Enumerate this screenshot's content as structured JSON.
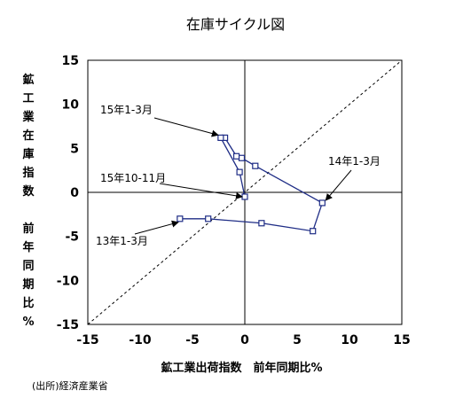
{
  "chart_data": {
    "type": "line",
    "title": "在庫サイクル図",
    "xlabel": "鉱工業出荷指数　前年同期比%",
    "ylabel_chars": [
      "鉱",
      "工",
      "業",
      "在",
      "庫",
      "指",
      "数",
      "",
      "前",
      "年",
      "同",
      "期",
      "比",
      "%"
    ],
    "xlim": [
      -15,
      15
    ],
    "ylim": [
      -15,
      15
    ],
    "x_ticks": [
      "-15",
      "-10",
      "-5",
      "0",
      "5",
      "10",
      "15"
    ],
    "y_ticks": [
      "15",
      "10",
      "5",
      "0",
      "-5",
      "-10",
      "-15"
    ],
    "reference_line": "y = x (dashed)",
    "grid": false,
    "series": [
      {
        "color": "#1f2d86",
        "marker": "square",
        "points": [
          {
            "x": -6.2,
            "y": -3.0
          },
          {
            "x": -3.5,
            "y": -3.0
          },
          {
            "x": 1.6,
            "y": -3.5
          },
          {
            "x": 6.5,
            "y": -4.4
          },
          {
            "x": 7.4,
            "y": -1.2
          },
          {
            "x": 1.0,
            "y": 3.0
          },
          {
            "x": -0.3,
            "y": 3.9
          },
          {
            "x": -0.8,
            "y": 4.1
          },
          {
            "x": -1.9,
            "y": 6.2
          },
          {
            "x": -2.3,
            "y": 6.2
          },
          {
            "x": -0.5,
            "y": 2.3
          },
          {
            "x": 0.0,
            "y": -0.5
          }
        ]
      }
    ],
    "annotations": [
      {
        "text": "13年1-3月",
        "target_index": 0
      },
      {
        "text": "14年1-3月",
        "target_index": 4
      },
      {
        "text": "15年1-3月",
        "target_index": 9
      },
      {
        "text": "15年10-11月",
        "target_index": 11
      }
    ]
  },
  "source_note": "(出所)経済産業省"
}
